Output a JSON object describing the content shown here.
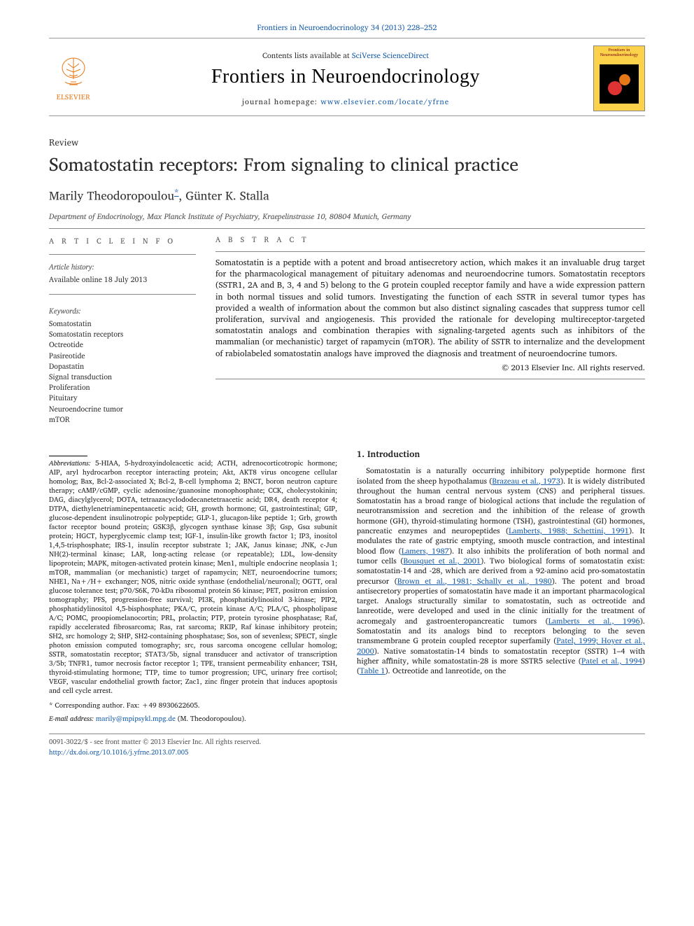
{
  "journal_ref_pre": "Frontiers in Neuroendocrinology 34 (2013) 228–252",
  "journal_ref_link_text": "Frontiers in Neuroendocrinology 34 (2013) 228–252",
  "contents_line_pre": "Contents lists available at ",
  "contents_line_link": "SciVerse ScienceDirect",
  "journal_name": "Frontiers in Neuroendocrinology",
  "homepage_pre": "journal homepage: ",
  "homepage_link": "www.elsevier.com/locate/yfrne",
  "cover_title": "Frontiers in Neuroendocrinology",
  "elsevier": "ELSEVIER",
  "article_type": "Review",
  "title": "Somatostatin receptors: From signaling to clinical practice",
  "author1": "Marily Theodoropoulou",
  "corr_sym": "*",
  "author_sep": ", ",
  "author2": "Günter K. Stalla",
  "affiliation": "Department of Endocrinology, Max Planck Institute of Psychiatry, Kraepelinstrasse 10, 80804 Munich, Germany",
  "info_label": "A R T I C L E   I N F O",
  "abs_label": "A B S T R A C T",
  "history_head": "Article history:",
  "history_line": "Available online 18 July 2013",
  "kw_head": "Keywords:",
  "keywords": "Somatostatin\nSomatostatin receptors\nOctreotide\nPasireotide\nDopastatin\nSignal transduction\nProliferation\nPituitary\nNeuroendocrine tumor\nmTOR",
  "abstract": "Somatostatin is a peptide with a potent and broad antisecretory action, which makes it an invaluable drug target for the pharmacological management of pituitary adenomas and neuroendocrine tumors. Somatostatin receptors (SSTR1, 2A and B, 3, 4 and 5) belong to the G protein coupled receptor family and have a wide expression pattern in both normal tissues and solid tumors. Investigating the function of each SSTR in several tumor types has provided a wealth of information about the common but also distinct signaling cascades that suppress tumor cell proliferation, survival and angiogenesis. This provided the rationale for developing multireceptor-targeted somatostatin analogs and combination therapies with signaling-targeted agents such as inhibitors of the mammalian (or mechanistic) target of rapamycin (mTOR). The ability of SSTR to internalize and the development of rabiolabeled somatostatin analogs have improved the diagnosis and treatment of neuroendocrine tumors.",
  "copyright": "© 2013 Elsevier Inc. All rights reserved.",
  "intro_head": "1. Introduction",
  "intro_body_parts": [
    "Somatostatin is a naturally occurring inhibitory polypeptide hormone first isolated from the sheep hypothalamus (",
    "Brazeau et al., 1973",
    "). It is widely distributed throughout the human central nervous system (CNS) and peripheral tissues. Somatostatin has a broad range of biological actions that include the regulation of neurotransmission and secretion and the inhibition of the release of growth hormone (GH), thyroid-stimulating hormone (TSH), gastrointestinal (GI) hormones, pancreatic enzymes and neuropeptides (",
    "Lamberts, 1988; Schettini, 1991",
    "). It modulates the rate of gastric emptying, smooth muscle contraction, and intestinal blood flow (",
    "Lamers, 1987",
    "). It also inhibits the proliferation of both normal and tumor cells (",
    "Bousquet et al., 2001",
    "). Two biological forms of somatostatin exist: somatostatin-14 and -28, which are derived from a 92-amino acid pro-somatostatin precursor (",
    "Brown et al., 1981; Schally et al., 1980",
    "). The potent and broad antisecretory properties of somatostatin have made it an important pharmacological target. Analogs structurally similar to somatostatin, such as octreotide and lanreotide, were developed and used in the clinic initially for the treatment of acromegaly and gastroenteropancreatic tumors (",
    "Lamberts et al., 1996",
    "). Somatostatin and its analogs bind to receptors belonging to the seven transmembrane G protein coupled receptor superfamily (",
    "Patel, 1999; Hoyer et al., 2000",
    "). Native somatostatin-14 binds to somatostatin receptor (SSTR) 1–4 with higher affinity, while somatostatin-28 is more SSTR5 selective (",
    "Patel et al., 1994",
    ") (",
    "Table 1",
    "). Octreotide and lanreotide, on the"
  ],
  "abbrev_lead": "Abbreviations:",
  "abbrev_body": " 5-HIAA, 5-hydroxyindoleacetic acid; ACTH, adrenocorticotropic hormone; AIP, aryl hydrocarbon receptor interacting protein; Akt, AKT8 virus oncogene cellular homolog; Bax, Bcl-2-associated X; Bcl-2, B-cell lymphoma 2; BNCT, boron neutron capture therapy; cAMP/cGMP, cyclic adenosine/guanosine monophosphate; CCK, cholecystokinin; DAG, diacylglycerol; DOTA, tetraazacyclododecanetetraacetic acid; DR4, death receptor 4; DTPA, diethylenetriaminepentaacetic acid; GH, growth hormone; GI, gastrointestinal; GIP, glucose-dependent insulinotropic polypeptide; GLP-1, glucagon-like peptide 1; Grb, growth factor receptor bound protein; GSK3β, glycogen synthase kinase 3β; Gsp, Gsα subunit protein; HGCT, hyperglycemic clamp test; IGF-1, insulin-like growth factor 1; IP3, inositol 1,4,5-trisphosphate; IRS-1, insulin receptor substrate 1; JAK, Janus kinase; JNK, c-Jun NH(2)-terminal kinase; LAR, long-acting release (or repeatable); LDL, low-density lipoprotein; MAPK, mitogen-activated protein kinase; Men1, multiple endocrine neoplasia 1; mTOR, mammalian (or mechanistic) target of rapamycin; NET, neuroendocrine tumors; NHE1, Na+/H+ exchanger; NOS, nitric oxide synthase (endothelial/neuronal); OGTT, oral glucose tolerance test; p70/S6K, 70-kDa ribosomal protein S6 kinase; PET, positron emission tomography; PFS, progression-free survival; PI3K, phosphatidylinositol 3-kinase; PIP2, phosphatidylinositol 4,5-bisphosphate; PKA/C, protein kinase A/C; PLA/C, phospholipase A/C; POMC, proopiomelanocortin; PRL, prolactin; PTP, protein tyrosine phosphatase; Raf, rapidly accelerated fibrosarcoma; Ras, rat sarcoma; RKIP, Raf kinase inhibitory protein; SH2, src homology 2; SHP, SH2-containing phosphatase; Sos, son of sevenless; SPECT, single photon emission computed tomography; src, rous sarcoma oncogene cellular homolog; SSTR, somatostatin receptor; STAT3/5b, signal transducer and activator of transcription 3/5b; TNFR1, tumor necrosis factor receptor 1; TPE, transient permeability enhancer; TSH, thyroid-stimulating hormone; TTP, time to tumor progression; UFC, urinary free cortisol; VEGF, vascular endothelial growth factor; Zac1, zinc finger protein that induces apoptosis and cell cycle arrest.",
  "corr_note": " Corresponding author. Fax: +49 8930622605.",
  "email_lead": "E-mail address: ",
  "email": "marily@mpipsykl.mpg.de",
  "email_tail": " (M. Theodoropoulou).",
  "footer_issn": "0091-3022/$ - see front matter © 2013 Elsevier Inc. All rights reserved.",
  "footer_doi": "http://dx.doi.org/10.1016/j.yfrne.2013.07.005",
  "colors": {
    "link": "#1b5faa",
    "elsevier_orange": "#e67817",
    "cover_bg": "#fbd24a",
    "cover_text": "#7a0019"
  }
}
